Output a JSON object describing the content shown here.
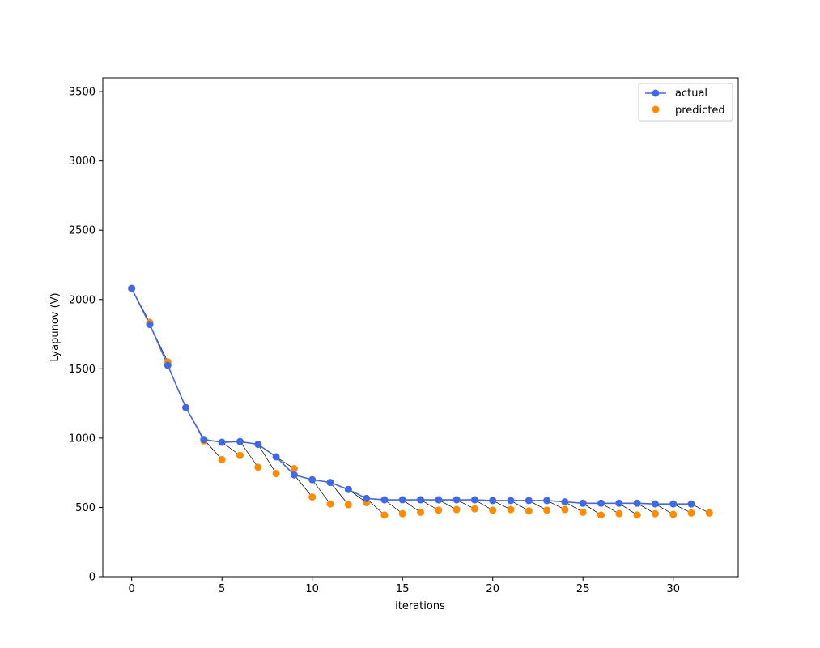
{
  "chart_data": {
    "type": "line",
    "title": "",
    "xlabel": "iterations",
    "ylabel": "Lyapunov (V)",
    "xlim": [
      -1.6,
      33.6
    ],
    "ylim": [
      0,
      3600
    ],
    "xticks": [
      0,
      5,
      10,
      15,
      20,
      25,
      30
    ],
    "yticks": [
      0,
      500,
      1000,
      1500,
      2000,
      2500,
      3000,
      3500
    ],
    "grid": false,
    "legend": "top-right",
    "series": [
      {
        "name": "actual",
        "style": "line+marker",
        "color": "#4169e1",
        "x": [
          0,
          1,
          2,
          3,
          4,
          5,
          6,
          7,
          8,
          9,
          10,
          11,
          12,
          13,
          14,
          15,
          16,
          17,
          18,
          19,
          20,
          21,
          22,
          23,
          24,
          25,
          26,
          27,
          28,
          29,
          30,
          31
        ],
        "y": [
          2080,
          1820,
          1525,
          1220,
          990,
          970,
          975,
          955,
          865,
          735,
          700,
          680,
          630,
          565,
          555,
          555,
          555,
          555,
          555,
          555,
          550,
          550,
          550,
          550,
          540,
          530,
          530,
          530,
          530,
          525,
          525,
          525
        ]
      },
      {
        "name": "predicted",
        "style": "marker",
        "color": "#ff8c00",
        "x": [
          0,
          1,
          2,
          3,
          4,
          5,
          6,
          7,
          8,
          9,
          10,
          11,
          12,
          13,
          14,
          15,
          16,
          17,
          18,
          19,
          20,
          21,
          22,
          23,
          24,
          25,
          26,
          27,
          28,
          29,
          30,
          31,
          32
        ],
        "y": [
          2080,
          1835,
          1550,
          1220,
          980,
          845,
          875,
          790,
          745,
          780,
          575,
          525,
          520,
          535,
          445,
          455,
          465,
          480,
          485,
          490,
          480,
          485,
          475,
          480,
          485,
          465,
          445,
          455,
          445,
          455,
          450,
          460,
          460
        ]
      }
    ]
  }
}
